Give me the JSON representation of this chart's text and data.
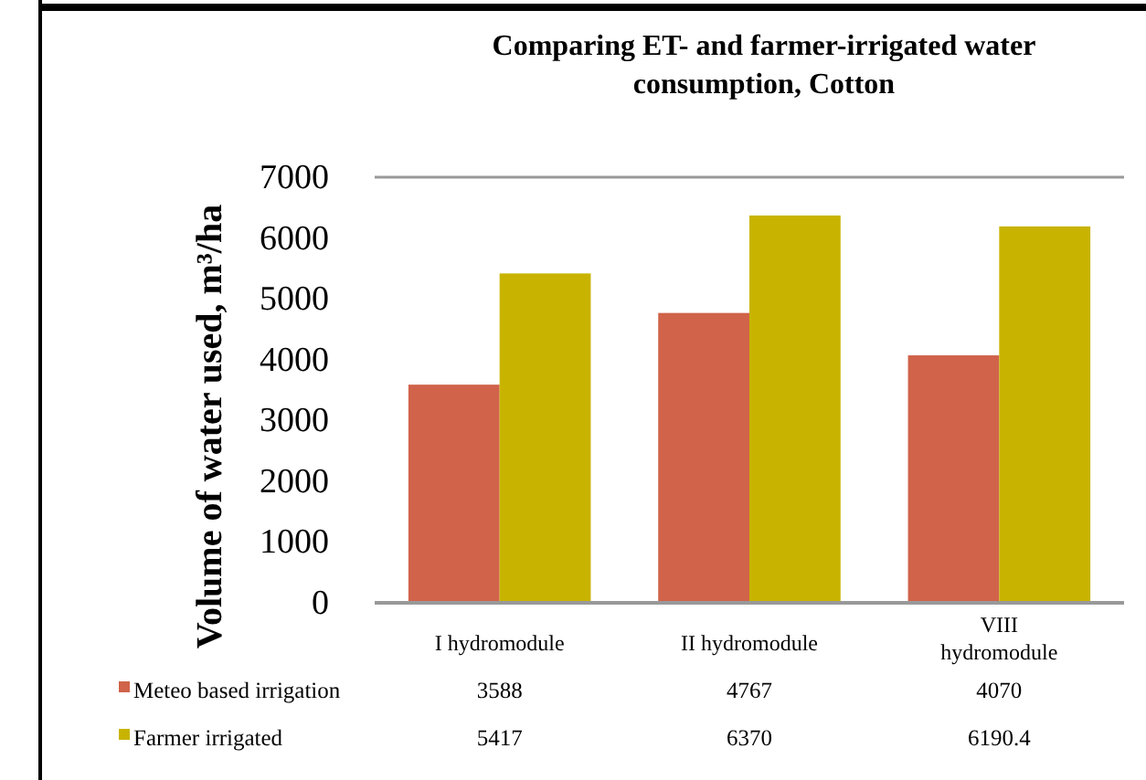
{
  "chart_data": {
    "type": "bar",
    "title": "Comparing ET- and farmer-irrigated water consumption, Cotton",
    "ylabel": "Volume of water used, m³/ha",
    "categories": [
      "I hydromodule",
      "II hydromodule",
      "VIII hydromodule"
    ],
    "series": [
      {
        "name": "Meteo based irrigation",
        "color": "#d0634a",
        "values": [
          3588,
          4767,
          4070
        ]
      },
      {
        "name": "Farmer irrigated",
        "color": "#c8b400",
        "values": [
          5417,
          6370,
          6190.4
        ]
      }
    ],
    "ylim": [
      0,
      7000
    ],
    "yticks": [
      0,
      1000,
      2000,
      3000,
      4000,
      5000,
      6000,
      7000
    ],
    "grid": false,
    "legend": "bottom",
    "data_labels": true
  }
}
